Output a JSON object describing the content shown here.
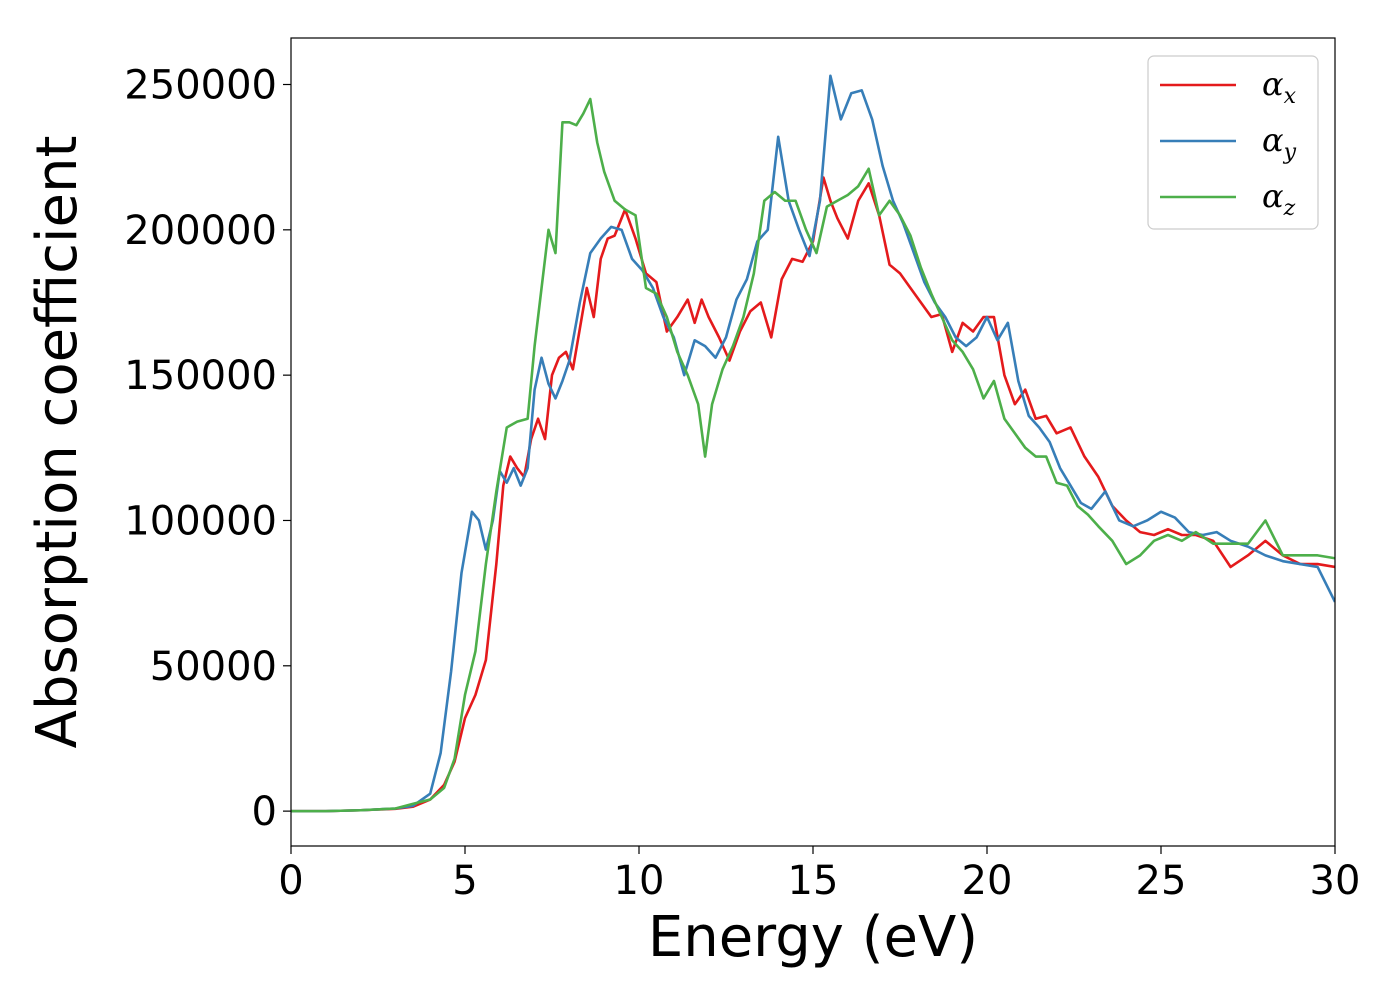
{
  "chart_data": {
    "type": "line",
    "xlabel": "Energy (eV)",
    "ylabel": "Absorption coefficient",
    "xlim": [
      0,
      30
    ],
    "ylim": [
      -12000,
      266000
    ],
    "x_ticks": [
      0,
      5,
      10,
      15,
      20,
      25,
      30
    ],
    "x_tick_labels": [
      "0",
      "5",
      "10",
      "15",
      "20",
      "25",
      "30"
    ],
    "y_ticks": [
      0,
      50000,
      100000,
      150000,
      200000,
      250000
    ],
    "y_tick_labels": [
      "0",
      "50000",
      "100000",
      "150000",
      "200000",
      "250000"
    ],
    "grid": false,
    "legend_position": "top-right",
    "series": [
      {
        "name": "α",
        "name_subscript": "x",
        "color": "#e41a1c",
        "x": [
          0,
          1,
          2,
          3,
          3.5,
          4,
          4.4,
          4.7,
          5,
          5.3,
          5.6,
          5.9,
          6.1,
          6.3,
          6.5,
          6.7,
          6.9,
          7.1,
          7.3,
          7.5,
          7.7,
          7.9,
          8.1,
          8.3,
          8.5,
          8.7,
          8.9,
          9.1,
          9.3,
          9.6,
          9.9,
          10.2,
          10.5,
          10.8,
          11.1,
          11.4,
          11.6,
          11.8,
          12.0,
          12.3,
          12.6,
          12.9,
          13.2,
          13.5,
          13.8,
          14.1,
          14.4,
          14.7,
          15.0,
          15.3,
          15.5,
          15.7,
          16.0,
          16.3,
          16.6,
          16.9,
          17.2,
          17.5,
          17.8,
          18.1,
          18.4,
          18.7,
          19.0,
          19.3,
          19.6,
          19.9,
          20.2,
          20.5,
          20.8,
          21.1,
          21.4,
          21.7,
          22.0,
          22.4,
          22.8,
          23.2,
          23.6,
          24.0,
          24.4,
          24.8,
          25.2,
          25.6,
          26.0,
          26.5,
          27.0,
          27.5,
          28.0,
          28.5,
          29.0,
          29.5,
          30.0
        ],
        "values": [
          0,
          0,
          300,
          800,
          1500,
          4000,
          9000,
          17000,
          32000,
          40000,
          52000,
          85000,
          112000,
          122000,
          118000,
          115000,
          128000,
          135000,
          128000,
          150000,
          156000,
          158000,
          152000,
          166000,
          180000,
          170000,
          190000,
          197000,
          198000,
          207000,
          197000,
          185000,
          182000,
          165000,
          170000,
          176000,
          168000,
          176000,
          170000,
          163000,
          155000,
          165000,
          172000,
          175000,
          163000,
          183000,
          190000,
          189000,
          196000,
          218000,
          210000,
          204000,
          197000,
          210000,
          216000,
          205000,
          188000,
          185000,
          180000,
          175000,
          170000,
          171000,
          158000,
          168000,
          165000,
          170000,
          170000,
          150000,
          140000,
          145000,
          135000,
          136000,
          130000,
          132000,
          122000,
          115000,
          105000,
          100000,
          96000,
          95000,
          97000,
          95000,
          95000,
          93000,
          84000,
          88000,
          93000,
          88000,
          85000,
          85000,
          84000
        ]
      },
      {
        "name": "α",
        "name_subscript": "y",
        "color": "#377eb8",
        "x": [
          0,
          1,
          2,
          3,
          3.5,
          4,
          4.3,
          4.6,
          4.9,
          5.2,
          5.4,
          5.6,
          5.8,
          6.0,
          6.2,
          6.4,
          6.6,
          6.8,
          7.0,
          7.2,
          7.4,
          7.6,
          7.8,
          8.0,
          8.3,
          8.6,
          8.9,
          9.2,
          9.5,
          9.8,
          10.1,
          10.4,
          10.7,
          11.0,
          11.3,
          11.6,
          11.9,
          12.2,
          12.5,
          12.8,
          13.1,
          13.4,
          13.7,
          14.0,
          14.3,
          14.6,
          14.9,
          15.2,
          15.5,
          15.8,
          16.1,
          16.4,
          16.7,
          17.0,
          17.3,
          17.6,
          17.9,
          18.2,
          18.5,
          18.8,
          19.1,
          19.4,
          19.7,
          20.0,
          20.3,
          20.6,
          20.9,
          21.2,
          21.5,
          21.8,
          22.1,
          22.4,
          22.7,
          23.0,
          23.4,
          23.8,
          24.2,
          24.6,
          25.0,
          25.4,
          25.8,
          26.2,
          26.6,
          27.0,
          27.5,
          28.0,
          28.5,
          29.0,
          29.5,
          30.0
        ],
        "values": [
          0,
          0,
          300,
          900,
          1800,
          6000,
          20000,
          48000,
          82000,
          103000,
          100000,
          90000,
          100000,
          117000,
          113000,
          118000,
          112000,
          118000,
          145000,
          156000,
          147000,
          142000,
          148000,
          155000,
          175000,
          192000,
          197000,
          201000,
          200000,
          190000,
          186000,
          180000,
          170000,
          163000,
          150000,
          162000,
          160000,
          156000,
          163000,
          176000,
          183000,
          196000,
          200000,
          232000,
          210000,
          200000,
          191000,
          210000,
          253000,
          238000,
          247000,
          248000,
          238000,
          222000,
          210000,
          202000,
          192000,
          182000,
          175000,
          170000,
          163000,
          160000,
          163000,
          170000,
          162000,
          168000,
          148000,
          136000,
          132000,
          127000,
          118000,
          112000,
          106000,
          104000,
          110000,
          100000,
          98000,
          100000,
          103000,
          101000,
          96000,
          95000,
          96000,
          93000,
          91000,
          88000,
          86000,
          85000,
          84000,
          72000
        ]
      },
      {
        "name": "α",
        "name_subscript": "z",
        "color": "#4daf4a",
        "x": [
          0,
          1,
          2,
          3,
          3.5,
          4,
          4.4,
          4.7,
          5.0,
          5.3,
          5.6,
          5.9,
          6.2,
          6.5,
          6.8,
          7.0,
          7.2,
          7.4,
          7.6,
          7.8,
          8.0,
          8.2,
          8.4,
          8.6,
          8.8,
          9.0,
          9.3,
          9.6,
          9.9,
          10.2,
          10.5,
          10.8,
          11.1,
          11.4,
          11.7,
          11.9,
          12.1,
          12.4,
          12.7,
          13.0,
          13.3,
          13.6,
          13.9,
          14.2,
          14.5,
          14.8,
          15.1,
          15.4,
          15.7,
          16.0,
          16.3,
          16.6,
          16.9,
          17.2,
          17.5,
          17.8,
          18.1,
          18.4,
          18.7,
          19.0,
          19.3,
          19.6,
          19.9,
          20.2,
          20.5,
          20.8,
          21.1,
          21.4,
          21.7,
          22.0,
          22.3,
          22.6,
          22.9,
          23.2,
          23.6,
          24.0,
          24.4,
          24.8,
          25.2,
          25.6,
          26.0,
          26.5,
          27.0,
          27.5,
          28.0,
          28.5,
          29.0,
          29.5,
          30.0
        ],
        "values": [
          0,
          0,
          300,
          900,
          2500,
          4000,
          8000,
          18000,
          40000,
          55000,
          85000,
          110000,
          132000,
          134000,
          135000,
          160000,
          180000,
          200000,
          192000,
          237000,
          237000,
          236000,
          240000,
          245000,
          230000,
          220000,
          210000,
          207000,
          205000,
          180000,
          178000,
          170000,
          158000,
          150000,
          140000,
          122000,
          140000,
          152000,
          160000,
          170000,
          185000,
          210000,
          213000,
          210000,
          210000,
          200000,
          192000,
          208000,
          210000,
          212000,
          215000,
          221000,
          205000,
          210000,
          205000,
          198000,
          187000,
          178000,
          170000,
          162000,
          158000,
          152000,
          142000,
          148000,
          135000,
          130000,
          125000,
          122000,
          122000,
          113000,
          112000,
          105000,
          102000,
          98000,
          93000,
          85000,
          88000,
          93000,
          95000,
          93000,
          96000,
          92000,
          92000,
          92000,
          100000,
          88000,
          88000,
          88000,
          87000
        ]
      }
    ]
  }
}
